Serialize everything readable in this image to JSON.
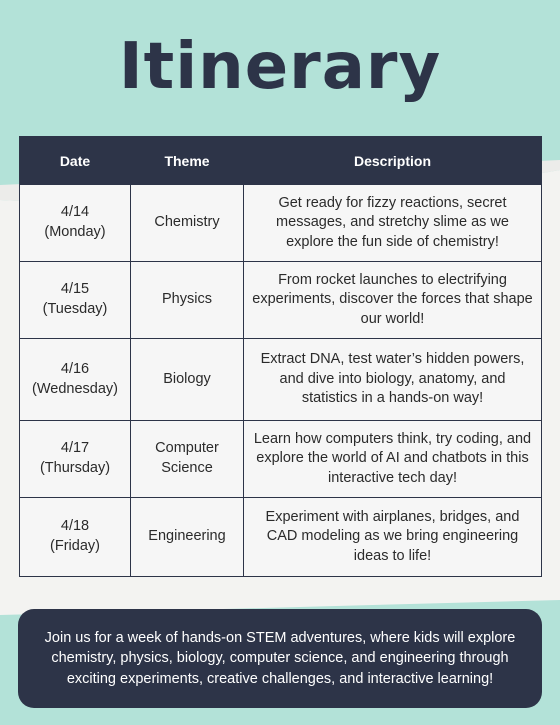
{
  "title": "Itinerary",
  "colors": {
    "background": "#b3e2d8",
    "dark": "#2d3448",
    "cell": "#f6f6f6"
  },
  "table": {
    "headers": [
      "Date",
      "Theme",
      "Description"
    ],
    "rows": [
      {
        "date": "4/14",
        "day": "(Monday)",
        "theme": "Chemistry",
        "theme_line2": "",
        "description": "Get ready for fizzy reactions, secret messages, and stretchy slime as we explore the fun side of chemistry!"
      },
      {
        "date": "4/15",
        "day": "(Tuesday)",
        "theme": "Physics",
        "theme_line2": "",
        "description": "From rocket launches to electrifying experiments, discover the forces that shape our world!"
      },
      {
        "date": "4/16",
        "day": "(Wednesday)",
        "theme": "Biology",
        "theme_line2": "",
        "description": "Extract DNA, test water’s hidden powers, and dive into biology, anatomy, and statistics in a hands-on way!"
      },
      {
        "date": "4/17",
        "day": "(Thursday)",
        "theme": "Computer",
        "theme_line2": "Science",
        "description": "Learn how computers think, try coding, and explore the world of AI and chatbots in this interactive tech day!"
      },
      {
        "date": "4/18",
        "day": "(Friday)",
        "theme": "Engineering",
        "theme_line2": "",
        "description": "Experiment with airplanes, bridges, and CAD modeling as we bring engineering ideas to life!"
      }
    ]
  },
  "footer": {
    "text": "Join us for a week of hands-on STEM adventures, where kids will explore chemistry, physics, biology, computer science, and engineering through exciting experiments, creative challenges, and interactive learning!"
  }
}
